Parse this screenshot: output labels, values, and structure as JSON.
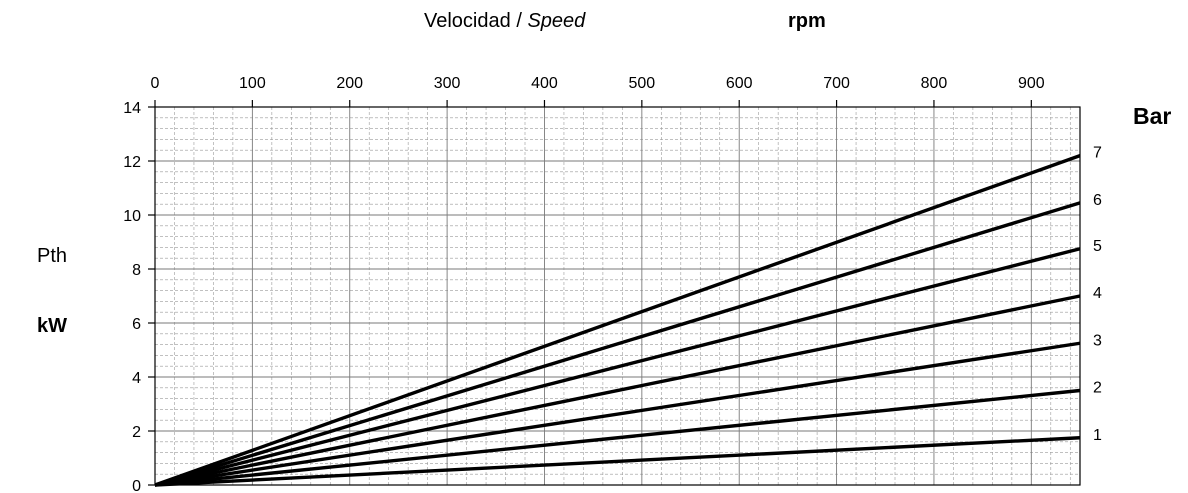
{
  "chart_data": {
    "type": "line",
    "xlabel": "Velocidad",
    "xlabel_italic": "Speed",
    "xlabel_separator": "/",
    "xunit": "rpm",
    "ylabel": "Pth",
    "yunit": "kW",
    "series_axis_label": "Bar",
    "xlim": [
      0,
      950
    ],
    "ylim": [
      0,
      14
    ],
    "x_ticks": [
      0,
      100,
      200,
      300,
      400,
      500,
      600,
      700,
      800,
      900
    ],
    "y_ticks": [
      0,
      2,
      4,
      6,
      8,
      10,
      12,
      14
    ],
    "grid": true,
    "x_axis_position": "top",
    "series": [
      {
        "name": "1",
        "x": [
          0,
          950
        ],
        "values": [
          0,
          1.75
        ]
      },
      {
        "name": "2",
        "x": [
          0,
          950
        ],
        "values": [
          0,
          3.5
        ]
      },
      {
        "name": "3",
        "x": [
          0,
          950
        ],
        "values": [
          0,
          5.25
        ]
      },
      {
        "name": "4",
        "x": [
          0,
          950
        ],
        "values": [
          0,
          7.0
        ]
      },
      {
        "name": "5",
        "x": [
          0,
          950
        ],
        "values": [
          0,
          8.75
        ]
      },
      {
        "name": "6",
        "x": [
          0,
          950
        ],
        "values": [
          0,
          10.45
        ]
      },
      {
        "name": "7",
        "x": [
          0,
          950
        ],
        "values": [
          0,
          12.2
        ]
      }
    ]
  }
}
